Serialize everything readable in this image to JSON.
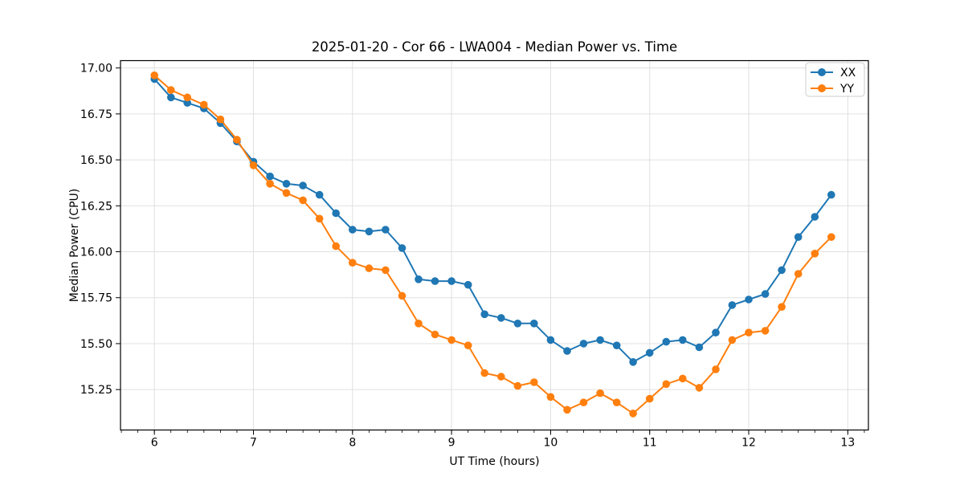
{
  "title": "2025-01-20 - Cor 66 - LWA004 - Median Power vs. Time",
  "chart_data": {
    "type": "line",
    "title": "2025-01-20 - Cor 66 - LWA004 - Median Power vs. Time",
    "xlabel": "UT Time (hours)",
    "ylabel": "Median Power (CPU)",
    "xlim": [
      5.658,
      13.208
    ],
    "ylim": [
      15.03,
      17.04
    ],
    "grid": true,
    "legend_position": "upper right",
    "background_color": "#ffffff",
    "grid_color": "#e0e0e0",
    "spine_color": "#000000",
    "x_ticks": [
      6,
      7,
      8,
      9,
      10,
      11,
      12,
      13
    ],
    "x_tick_labels": [
      "6",
      "7",
      "8",
      "9",
      "10",
      "11",
      "12",
      "13"
    ],
    "x_minor_tick_step": 0.16667,
    "y_ticks": [
      15.25,
      15.5,
      15.75,
      16.0,
      16.25,
      16.5,
      16.75,
      17.0
    ],
    "y_tick_labels": [
      "15.25",
      "15.50",
      "15.75",
      "16.00",
      "16.25",
      "16.50",
      "16.75",
      "17.00"
    ],
    "x": [
      6.0,
      6.167,
      6.333,
      6.5,
      6.667,
      6.833,
      7.0,
      7.167,
      7.333,
      7.5,
      7.667,
      7.833,
      8.0,
      8.167,
      8.333,
      8.5,
      8.667,
      8.833,
      9.0,
      9.167,
      9.333,
      9.5,
      9.667,
      9.833,
      10.0,
      10.167,
      10.333,
      10.5,
      10.667,
      10.833,
      11.0,
      11.167,
      11.333,
      11.5,
      11.667,
      11.833,
      12.0,
      12.167,
      12.333,
      12.5,
      12.667,
      12.833
    ],
    "series": [
      {
        "name": "XX",
        "color": "#1f77b4",
        "marker": "circle",
        "values": [
          16.94,
          16.84,
          16.81,
          16.78,
          16.7,
          16.6,
          16.49,
          16.41,
          16.37,
          16.36,
          16.31,
          16.21,
          16.12,
          16.11,
          16.12,
          16.02,
          15.85,
          15.84,
          15.84,
          15.82,
          15.66,
          15.64,
          15.61,
          15.61,
          15.52,
          15.46,
          15.5,
          15.52,
          15.49,
          15.4,
          15.45,
          15.51,
          15.52,
          15.48,
          15.56,
          15.71,
          15.74,
          15.77,
          15.9,
          16.08,
          16.19,
          16.31
        ]
      },
      {
        "name": "YY",
        "color": "#ff7f0e",
        "marker": "circle",
        "values": [
          16.96,
          16.88,
          16.84,
          16.8,
          16.72,
          16.61,
          16.47,
          16.37,
          16.32,
          16.28,
          16.18,
          16.03,
          15.94,
          15.91,
          15.9,
          15.76,
          15.61,
          15.55,
          15.52,
          15.49,
          15.34,
          15.32,
          15.27,
          15.29,
          15.21,
          15.14,
          15.18,
          15.23,
          15.18,
          15.12,
          15.2,
          15.28,
          15.31,
          15.26,
          15.36,
          15.52,
          15.56,
          15.57,
          15.7,
          15.88,
          15.99,
          16.08
        ]
      }
    ]
  }
}
